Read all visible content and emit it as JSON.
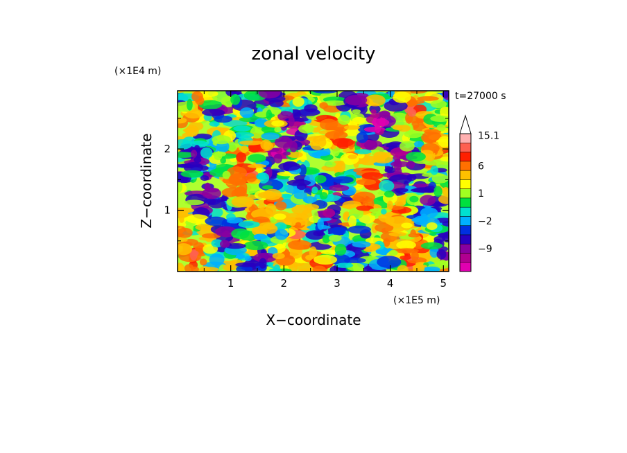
{
  "chart_data": {
    "type": "heatmap",
    "title": "zonal velocity",
    "xlabel": "X−coordinate",
    "ylabel": "Z−coordinate",
    "x_unit": "(×1E5 m)",
    "y_unit": "(×1E4 m)",
    "time_label": "t=27000 s",
    "xlim": [
      0,
      5.1
    ],
    "ylim": [
      0,
      2.95
    ],
    "x_ticks": [
      1,
      2,
      3,
      4,
      5
    ],
    "y_ticks": [
      1,
      2
    ],
    "x_tick_labels": [
      "1",
      "2",
      "3",
      "4",
      "5"
    ],
    "y_tick_labels": [
      "1",
      "2"
    ],
    "colorbar": {
      "levels": [
        -15,
        -12,
        -9,
        -6,
        -3,
        -2,
        -1,
        0,
        1,
        2,
        3,
        6,
        9,
        12,
        15.1
      ],
      "colors": [
        "#e000b0",
        "#b00090",
        "#8800a0",
        "#2800c0",
        "#0030e0",
        "#00b0ff",
        "#00e0d0",
        "#00e040",
        "#a0ff20",
        "#ffff00",
        "#ffc000",
        "#ff7000",
        "#ff2000",
        "#ff6050",
        "#ffb0b0"
      ],
      "labeled_ticks": [
        {
          "value": 15.1,
          "label": "15.1"
        },
        {
          "value": 6,
          "label": "6"
        },
        {
          "value": 1,
          "label": "1"
        },
        {
          "value": -2,
          "label": "−2"
        },
        {
          "value": -9,
          "label": "−9"
        }
      ],
      "extend": "max"
    }
  }
}
